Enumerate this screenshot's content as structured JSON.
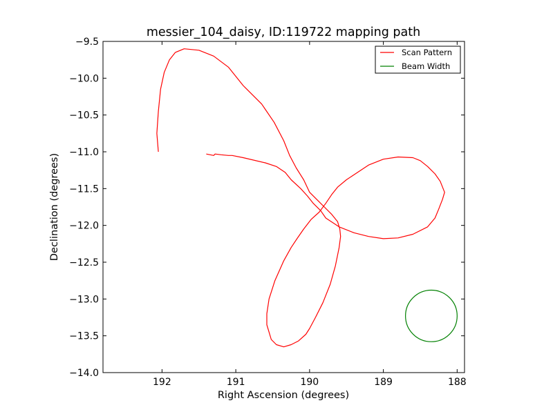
{
  "chart_data": {
    "type": "line",
    "title": "messier_104_daisy, ID:119722 mapping path",
    "xlabel": "Right Ascension (degrees)",
    "ylabel": "Declination (degrees)",
    "xlim": [
      192.8,
      187.9
    ],
    "ylim": [
      -14.0,
      -9.5
    ],
    "x_inverted": true,
    "xticks": [
      192,
      191,
      190,
      189,
      188
    ],
    "xtick_labels": [
      "192",
      "191",
      "190",
      "189",
      "188"
    ],
    "yticks": [
      -9.5,
      -10.0,
      -10.5,
      -11.0,
      -11.5,
      -12.0,
      -12.5,
      -13.0,
      -13.5,
      -14.0
    ],
    "ytick_labels": [
      "−9.5",
      "−10.0",
      "−10.5",
      "−11.0",
      "−11.5",
      "−12.0",
      "−12.5",
      "−13.0",
      "−13.5",
      "−14.0"
    ],
    "grid": false,
    "legend_position": "top-right",
    "series": [
      {
        "name": "Scan Pattern",
        "color": "#ff0000",
        "x": [
          191.4,
          191.3,
          191.28,
          191.2,
          191.1,
          191.05,
          190.9,
          190.6,
          190.45,
          190.33,
          190.25,
          190.12,
          190.03,
          189.95,
          189.85,
          189.78,
          189.6,
          189.4,
          189.2,
          189.0,
          188.8,
          188.6,
          188.4,
          188.3,
          188.25,
          188.2,
          188.17,
          188.23,
          188.3,
          188.4,
          188.5,
          188.6,
          188.8,
          189.0,
          189.2,
          189.35,
          189.5,
          189.62,
          189.7,
          189.78,
          189.87,
          189.98,
          190.08,
          190.17,
          190.25,
          190.35,
          190.47,
          190.55,
          190.58,
          190.58,
          190.55,
          190.52,
          190.45,
          190.35,
          190.25,
          190.15,
          190.05,
          190.0,
          189.92,
          189.82,
          189.72,
          189.65,
          189.6,
          189.58,
          189.59,
          189.62,
          189.7,
          189.8,
          189.9,
          190.0,
          190.08,
          190.18,
          190.27,
          190.35,
          190.48,
          190.65,
          190.9,
          191.1,
          191.3,
          191.5,
          191.7,
          191.82,
          191.9,
          191.97,
          192.02,
          192.05,
          192.07,
          192.05
        ],
        "y": [
          -11.03,
          -11.05,
          -11.03,
          -11.04,
          -11.05,
          -11.05,
          -11.08,
          -11.15,
          -11.2,
          -11.28,
          -11.38,
          -11.5,
          -11.6,
          -11.7,
          -11.8,
          -11.9,
          -12.02,
          -12.1,
          -12.15,
          -12.18,
          -12.17,
          -12.12,
          -12.02,
          -11.9,
          -11.78,
          -11.65,
          -11.55,
          -11.4,
          -11.3,
          -11.2,
          -11.12,
          -11.08,
          -11.07,
          -11.1,
          -11.18,
          -11.28,
          -11.38,
          -11.48,
          -11.58,
          -11.7,
          -11.82,
          -11.92,
          -12.05,
          -12.18,
          -12.3,
          -12.48,
          -12.75,
          -13.0,
          -13.2,
          -13.35,
          -13.45,
          -13.55,
          -13.62,
          -13.65,
          -13.62,
          -13.57,
          -13.48,
          -13.4,
          -13.25,
          -13.05,
          -12.8,
          -12.55,
          -12.3,
          -12.15,
          -12.05,
          -11.95,
          -11.85,
          -11.75,
          -11.65,
          -11.55,
          -11.38,
          -11.22,
          -11.05,
          -10.85,
          -10.6,
          -10.35,
          -10.1,
          -9.85,
          -9.7,
          -9.62,
          -9.6,
          -9.65,
          -9.75,
          -9.92,
          -10.15,
          -10.45,
          -10.75,
          -11.0
        ]
      },
      {
        "name": "Beam Width",
        "color": "#008000",
        "center": [
          188.35,
          -13.23
        ],
        "radius": 0.35
      }
    ]
  }
}
